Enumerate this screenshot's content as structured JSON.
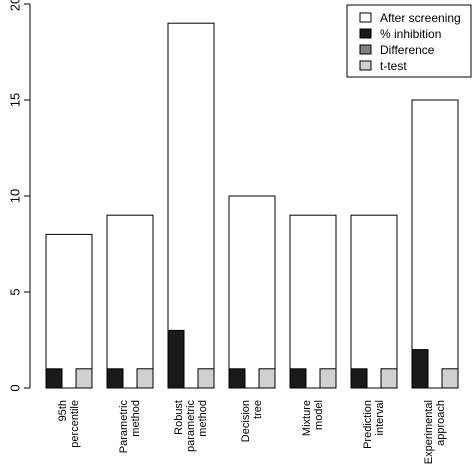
{
  "chart_data": {
    "type": "bar",
    "title": "",
    "xlabel": "",
    "ylabel": "",
    "ylim": [
      0,
      20
    ],
    "yticks": [
      0,
      5,
      10,
      15,
      20
    ],
    "categories": [
      [
        "95th",
        "percentile"
      ],
      [
        "Parametric",
        "method"
      ],
      [
        "Robust",
        "parametric",
        "method"
      ],
      [
        "Decision",
        "tree"
      ],
      [
        "Mixture",
        "model"
      ],
      [
        "Prediction",
        "interval"
      ],
      [
        "Experimental",
        "approach"
      ]
    ],
    "series": [
      {
        "name": "After screening",
        "color": "#ffffff",
        "values": [
          8,
          9,
          19,
          10,
          9,
          9,
          15
        ]
      },
      {
        "name": "% inhibition",
        "color": "#1a1a1a",
        "values": [
          1,
          1,
          3,
          1,
          1,
          1,
          2
        ]
      },
      {
        "name": "Difference",
        "color": "#808080",
        "values": [
          0,
          0,
          0,
          0,
          0,
          0,
          0
        ]
      },
      {
        "name": "t-test",
        "color": "#d0d0d0",
        "values": [
          1,
          1,
          1,
          1,
          1,
          1,
          1
        ]
      }
    ],
    "legend_position": "top-right",
    "grid": false
  }
}
